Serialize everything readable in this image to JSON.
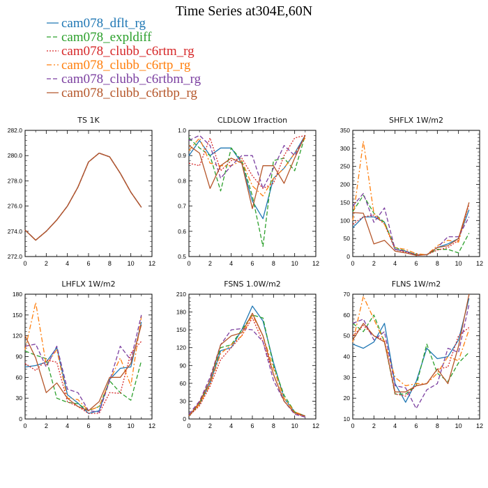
{
  "title": "Time Series at304E,60N",
  "colors": {
    "cam078_dflt_rg": "#1f77b4",
    "cam078_expldiff": "#2ca02c",
    "cam078_clubb_c6rtm_rg": "#d62728",
    "cam078_clubb_c6rtp_rg": "#ff7f0e",
    "cam078_clubb_c6rtbm_rg": "#7b3fa0",
    "cam078_clubb_c6rtbp_rg": "#b5562a"
  },
  "legend": [
    {
      "name": "cam078_dflt_rg",
      "dash": "solid"
    },
    {
      "name": "cam078_expldiff",
      "dash": "dashed"
    },
    {
      "name": "cam078_clubb_c6rtm_rg",
      "dash": "dotted"
    },
    {
      "name": "cam078_clubb_c6rtp_rg",
      "dash": "dashdot"
    },
    {
      "name": "cam078_clubb_c6rtbm_rg",
      "dash": "dashed"
    },
    {
      "name": "cam078_clubb_c6rtbp_rg",
      "dash": "solid"
    }
  ],
  "chart_data": [
    {
      "type": "line",
      "title": "TS   1K",
      "x": [
        0,
        1,
        2,
        3,
        4,
        5,
        6,
        7,
        8,
        9,
        10,
        11
      ],
      "xlim": [
        0,
        12
      ],
      "xticks": [
        "0",
        "2",
        "4",
        "6",
        "8",
        "10",
        "12"
      ],
      "ylim": [
        272.0,
        282.0
      ],
      "yticks": [
        "272.0",
        "274.0",
        "276.0",
        "278.0",
        "280.0",
        "282.0"
      ],
      "series": [
        {
          "name": "cam078_dflt_rg",
          "values": [
            274.1,
            273.3,
            274.0,
            274.9,
            276.0,
            277.5,
            279.5,
            280.2,
            279.9,
            278.6,
            277.1,
            275.9
          ]
        },
        {
          "name": "cam078_expldiff",
          "values": [
            274.1,
            273.3,
            274.0,
            274.9,
            276.0,
            277.5,
            279.5,
            280.2,
            279.9,
            278.6,
            277.1,
            275.9
          ]
        },
        {
          "name": "cam078_clubb_c6rtm_rg",
          "values": [
            274.1,
            273.3,
            274.0,
            274.9,
            276.0,
            277.5,
            279.5,
            280.2,
            279.9,
            278.6,
            277.1,
            275.9
          ]
        },
        {
          "name": "cam078_clubb_c6rtp_rg",
          "values": [
            274.1,
            273.3,
            274.0,
            274.9,
            276.0,
            277.5,
            279.5,
            280.2,
            279.9,
            278.6,
            277.1,
            275.9
          ]
        },
        {
          "name": "cam078_clubb_c6rtbm_rg",
          "values": [
            274.1,
            273.3,
            274.0,
            274.9,
            276.0,
            277.5,
            279.5,
            280.2,
            279.9,
            278.6,
            277.1,
            275.9
          ]
        },
        {
          "name": "cam078_clubb_c6rtbp_rg",
          "values": [
            274.1,
            273.3,
            274.0,
            274.9,
            276.0,
            277.5,
            279.5,
            280.2,
            279.9,
            278.6,
            277.1,
            275.9
          ]
        }
      ]
    },
    {
      "type": "line",
      "title": "CLDLOW   1fraction",
      "x": [
        0,
        1,
        2,
        3,
        4,
        5,
        6,
        7,
        8,
        9,
        10,
        11
      ],
      "xlim": [
        0,
        12
      ],
      "xticks": [
        "0",
        "2",
        "4",
        "6",
        "8",
        "10",
        "12"
      ],
      "ylim": [
        0.5,
        1.0
      ],
      "yticks": [
        "0.5",
        "0.6",
        "0.7",
        "0.8",
        "0.9",
        "1.0"
      ],
      "series": [
        {
          "name": "cam078_dflt_rg",
          "values": [
            0.9,
            0.96,
            0.9,
            0.93,
            0.93,
            0.87,
            0.72,
            0.65,
            0.81,
            0.85,
            0.91,
            0.98
          ]
        },
        {
          "name": "cam078_expldiff",
          "values": [
            0.97,
            0.93,
            0.9,
            0.76,
            0.93,
            0.88,
            0.74,
            0.54,
            0.88,
            0.89,
            0.84,
            0.98
          ]
        },
        {
          "name": "cam078_clubb_c6rtm_rg",
          "values": [
            0.87,
            0.86,
            0.97,
            0.84,
            0.88,
            0.89,
            0.82,
            0.77,
            0.79,
            0.9,
            0.97,
            0.98
          ]
        },
        {
          "name": "cam078_clubb_c6rtp_rg",
          "values": [
            0.92,
            0.97,
            0.87,
            0.86,
            0.86,
            0.88,
            0.78,
            0.74,
            0.81,
            0.85,
            0.91,
            0.97
          ]
        },
        {
          "name": "cam078_clubb_c6rtbm_rg",
          "values": [
            0.96,
            0.98,
            0.94,
            0.81,
            0.86,
            0.9,
            0.9,
            0.77,
            0.85,
            0.94,
            0.9,
            0.98
          ]
        },
        {
          "name": "cam078_clubb_c6rtbp_rg",
          "values": [
            0.94,
            0.91,
            0.77,
            0.86,
            0.89,
            0.87,
            0.69,
            0.86,
            0.86,
            0.79,
            0.89,
            0.98
          ]
        }
      ]
    },
    {
      "type": "line",
      "title": "SHFLX   1W/m2",
      "x": [
        0,
        1,
        2,
        3,
        4,
        5,
        6,
        7,
        8,
        9,
        10,
        11
      ],
      "xlim": [
        0,
        12
      ],
      "xticks": [
        "0",
        "2",
        "4",
        "6",
        "8",
        "10",
        "12"
      ],
      "ylim": [
        0,
        350
      ],
      "yticks": [
        "0",
        "50",
        "100",
        "150",
        "200",
        "250",
        "300",
        "350"
      ],
      "series": [
        {
          "name": "cam078_dflt_rg",
          "values": [
            80,
            110,
            110,
            95,
            20,
            15,
            5,
            5,
            25,
            35,
            50,
            130
          ]
        },
        {
          "name": "cam078_expldiff",
          "values": [
            125,
            170,
            120,
            95,
            25,
            15,
            5,
            5,
            20,
            20,
            10,
            65
          ]
        },
        {
          "name": "cam078_clubb_c6rtm_rg",
          "values": [
            90,
            110,
            115,
            90,
            20,
            12,
            5,
            5,
            18,
            25,
            45,
            145
          ]
        },
        {
          "name": "cam078_clubb_c6rtp_rg",
          "values": [
            100,
            320,
            120,
            90,
            25,
            20,
            8,
            5,
            30,
            45,
            40,
            150
          ]
        },
        {
          "name": "cam078_clubb_c6rtbm_rg",
          "values": [
            140,
            175,
            95,
            135,
            20,
            15,
            3,
            5,
            25,
            55,
            55,
            110
          ]
        },
        {
          "name": "cam078_clubb_c6rtbp_rg",
          "values": [
            122,
            120,
            35,
            45,
            15,
            10,
            3,
            5,
            25,
            30,
            50,
            150
          ]
        }
      ]
    },
    {
      "type": "line",
      "title": "LHFLX   1W/m2",
      "x": [
        0,
        1,
        2,
        3,
        4,
        5,
        6,
        7,
        8,
        9,
        10,
        11
      ],
      "xlim": [
        0,
        12
      ],
      "xticks": [
        "0",
        "2",
        "4",
        "6",
        "8",
        "10",
        "12"
      ],
      "ylim": [
        0,
        180
      ],
      "yticks": [
        "0",
        "30",
        "60",
        "90",
        "120",
        "150",
        "180"
      ],
      "series": [
        {
          "name": "cam078_dflt_rg",
          "values": [
            75,
            77,
            82,
            103,
            35,
            23,
            8,
            12,
            57,
            73,
            75,
            140
          ]
        },
        {
          "name": "cam078_expldiff",
          "values": [
            98,
            92,
            87,
            30,
            24,
            22,
            12,
            18,
            55,
            38,
            27,
            84
          ]
        },
        {
          "name": "cam078_clubb_c6rtm_rg",
          "values": [
            80,
            70,
            85,
            82,
            25,
            18,
            8,
            8,
            38,
            37,
            95,
            112
          ]
        },
        {
          "name": "cam078_clubb_c6rtp_rg",
          "values": [
            100,
            168,
            78,
            100,
            30,
            28,
            12,
            18,
            55,
            88,
            48,
            148
          ]
        },
        {
          "name": "cam078_clubb_c6rtbm_rg",
          "values": [
            105,
            108,
            75,
            105,
            43,
            38,
            12,
            10,
            55,
            105,
            85,
            150
          ]
        },
        {
          "name": "cam078_clubb_c6rtbp_rg",
          "values": [
            120,
            88,
            38,
            52,
            30,
            18,
            12,
            25,
            60,
            60,
            80,
            136
          ]
        }
      ]
    },
    {
      "type": "line",
      "title": "FSNS   1.0W/m2",
      "x": [
        0,
        1,
        2,
        3,
        4,
        5,
        6,
        7,
        8,
        9,
        10,
        11
      ],
      "xlim": [
        0,
        12
      ],
      "xticks": [
        "0",
        "2",
        "4",
        "6",
        "8",
        "10",
        "12"
      ],
      "ylim": [
        0,
        210
      ],
      "yticks": [
        "0",
        "30",
        "60",
        "90",
        "120",
        "150",
        "180",
        "210"
      ],
      "series": [
        {
          "name": "cam078_dflt_rg",
          "values": [
            5,
            25,
            60,
            115,
            120,
            150,
            190,
            165,
            95,
            35,
            12,
            5
          ]
        },
        {
          "name": "cam078_expldiff",
          "values": [
            5,
            25,
            65,
            120,
            125,
            150,
            175,
            170,
            90,
            40,
            12,
            5
          ]
        },
        {
          "name": "cam078_clubb_c6rtm_rg",
          "values": [
            5,
            22,
            55,
            100,
            120,
            140,
            170,
            130,
            75,
            30,
            10,
            3
          ]
        },
        {
          "name": "cam078_clubb_c6rtp_rg",
          "values": [
            5,
            25,
            58,
            110,
            125,
            140,
            175,
            140,
            85,
            35,
            12,
            5
          ]
        },
        {
          "name": "cam078_clubb_c6rtbm_rg",
          "values": [
            8,
            30,
            70,
            125,
            150,
            152,
            150,
            130,
            65,
            30,
            8,
            3
          ]
        },
        {
          "name": "cam078_clubb_c6rtbp_rg",
          "values": [
            5,
            28,
            65,
            125,
            140,
            145,
            178,
            140,
            75,
            30,
            10,
            5
          ]
        }
      ]
    },
    {
      "type": "line",
      "title": "FLNS   1W/m2",
      "x": [
        0,
        1,
        2,
        3,
        4,
        5,
        6,
        7,
        8,
        9,
        10,
        11
      ],
      "xlim": [
        0,
        12
      ],
      "xticks": [
        "0",
        "2",
        "4",
        "6",
        "8",
        "10",
        "12"
      ],
      "ylim": [
        10,
        70
      ],
      "yticks": [
        "10",
        "20",
        "30",
        "40",
        "50",
        "60",
        "70"
      ],
      "series": [
        {
          "name": "cam078_dflt_rg",
          "values": [
            46,
            44,
            47,
            56,
            27,
            18,
            28,
            44,
            39,
            40,
            48,
            68
          ]
        },
        {
          "name": "cam078_expldiff",
          "values": [
            56,
            52,
            60,
            47,
            22,
            22,
            26,
            46,
            32,
            28,
            37,
            42
          ]
        },
        {
          "name": "cam078_clubb_c6rtm_rg",
          "values": [
            50,
            55,
            50,
            48,
            22,
            21,
            26,
            27,
            34,
            35,
            50,
            54
          ]
        },
        {
          "name": "cam078_clubb_c6rtp_rg",
          "values": [
            47,
            69,
            58,
            47,
            30,
            26,
            27,
            27,
            32,
            40,
            38,
            53
          ]
        },
        {
          "name": "cam078_clubb_c6rtbm_rg",
          "values": [
            56,
            58,
            48,
            52,
            26,
            25,
            15,
            24,
            27,
            44,
            42,
            65
          ]
        },
        {
          "name": "cam078_clubb_c6rtbp_rg",
          "values": [
            48,
            56,
            50,
            47,
            23,
            23,
            26,
            27,
            34,
            27,
            45,
            70
          ]
        }
      ]
    }
  ]
}
